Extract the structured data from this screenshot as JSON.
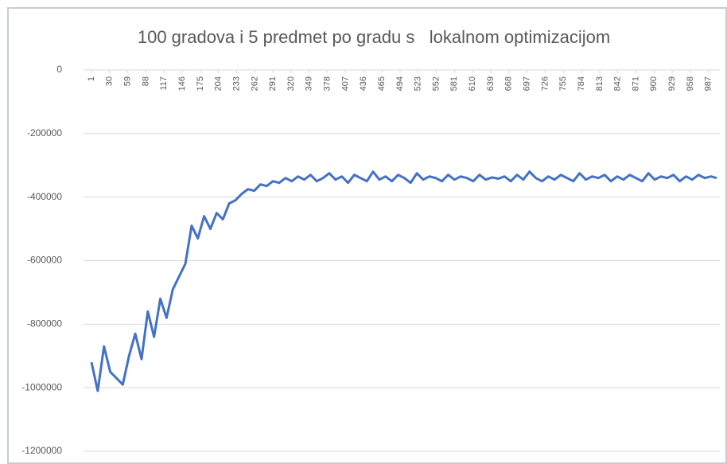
{
  "chart_data": {
    "type": "line",
    "title": "100 gradova i 5 predmet po gradu s   lokalnom optimizacijom",
    "x": [
      1,
      11,
      21,
      31,
      41,
      51,
      61,
      71,
      81,
      91,
      101,
      111,
      121,
      131,
      141,
      151,
      161,
      171,
      181,
      191,
      201,
      211,
      221,
      231,
      241,
      251,
      261,
      271,
      281,
      291,
      301,
      311,
      321,
      331,
      341,
      351,
      361,
      371,
      381,
      391,
      401,
      411,
      421,
      431,
      441,
      451,
      461,
      471,
      481,
      491,
      501,
      511,
      521,
      531,
      541,
      551,
      561,
      571,
      581,
      591,
      601,
      611,
      621,
      631,
      641,
      651,
      661,
      671,
      681,
      691,
      701,
      711,
      721,
      731,
      741,
      751,
      761,
      771,
      781,
      791,
      801,
      811,
      821,
      831,
      841,
      851,
      861,
      871,
      881,
      891,
      901,
      911,
      921,
      931,
      941,
      951,
      961,
      971,
      981,
      991,
      1000
    ],
    "series": [
      {
        "color": "#4472c4",
        "values": [
          -920000,
          -1010000,
          -870000,
          -950000,
          -970000,
          -990000,
          -900000,
          -830000,
          -910000,
          -760000,
          -840000,
          -720000,
          -780000,
          -690000,
          -650000,
          -610000,
          -490000,
          -530000,
          -460000,
          -500000,
          -450000,
          -470000,
          -420000,
          -410000,
          -390000,
          -375000,
          -380000,
          -360000,
          -365000,
          -350000,
          -355000,
          -340000,
          -350000,
          -335000,
          -345000,
          -330000,
          -350000,
          -340000,
          -325000,
          -345000,
          -335000,
          -355000,
          -330000,
          -340000,
          -350000,
          -320000,
          -345000,
          -335000,
          -350000,
          -330000,
          -340000,
          -355000,
          -325000,
          -345000,
          -335000,
          -340000,
          -350000,
          -330000,
          -345000,
          -335000,
          -340000,
          -350000,
          -330000,
          -345000,
          -338000,
          -342000,
          -335000,
          -350000,
          -330000,
          -345000,
          -320000,
          -340000,
          -350000,
          -335000,
          -345000,
          -330000,
          -340000,
          -350000,
          -325000,
          -345000,
          -335000,
          -340000,
          -330000,
          -350000,
          -335000,
          -345000,
          -330000,
          -340000,
          -350000,
          -325000,
          -345000,
          -335000,
          -340000,
          -330000,
          -350000,
          -335000,
          -345000,
          -330000,
          -340000,
          -335000,
          -340000
        ]
      }
    ],
    "xlim": [
      1,
      1000
    ],
    "xticks": [
      1,
      30,
      59,
      88,
      117,
      146,
      175,
      204,
      233,
      262,
      291,
      320,
      349,
      378,
      407,
      436,
      465,
      494,
      523,
      552,
      581,
      610,
      639,
      668,
      697,
      726,
      755,
      784,
      813,
      842,
      871,
      900,
      929,
      958,
      987
    ],
    "ylim": [
      -1200000,
      0
    ],
    "yticks": [
      0,
      -200000,
      -400000,
      -600000,
      -800000,
      -1000000,
      -1200000
    ],
    "grid": true
  }
}
